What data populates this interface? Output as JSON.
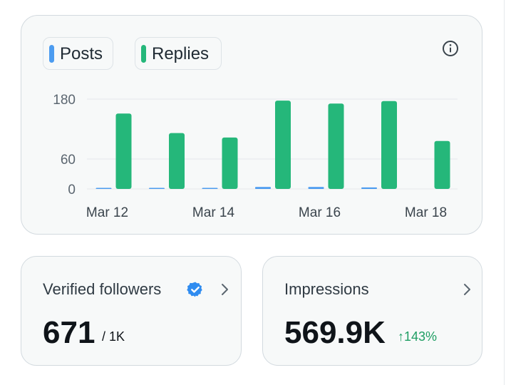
{
  "colors": {
    "posts": "#4c9cf0",
    "replies": "#25b77a",
    "growth": "#1f9e63",
    "verified": "#2f8cf0"
  },
  "legend": {
    "posts_label": "Posts",
    "replies_label": "Replies"
  },
  "icons": {
    "info": "info-icon",
    "verified": "verified-badge-icon",
    "chevron": "chevron-right-icon"
  },
  "chart_data": {
    "type": "bar",
    "categories": [
      "Mar 12",
      "Mar 13",
      "Mar 14",
      "Mar 15",
      "Mar 16",
      "Mar 17",
      "Mar 18"
    ],
    "x_tick_labels": [
      "Mar 12",
      "Mar 14",
      "Mar 16",
      "Mar 18"
    ],
    "y_ticks": [
      0,
      60,
      180
    ],
    "ylim": [
      0,
      180
    ],
    "grid": true,
    "series": [
      {
        "name": "Posts",
        "values": [
          1,
          1,
          1,
          4,
          4,
          3,
          0
        ]
      },
      {
        "name": "Replies",
        "values": [
          151,
          112,
          103,
          177,
          171,
          176,
          96
        ]
      }
    ]
  },
  "stats": {
    "followers": {
      "title": "Verified followers",
      "value": "671",
      "sub": "/ 1K"
    },
    "impressions": {
      "title": "Impressions",
      "value": "569.9K",
      "change": "143%",
      "change_arrow": "↑"
    }
  }
}
